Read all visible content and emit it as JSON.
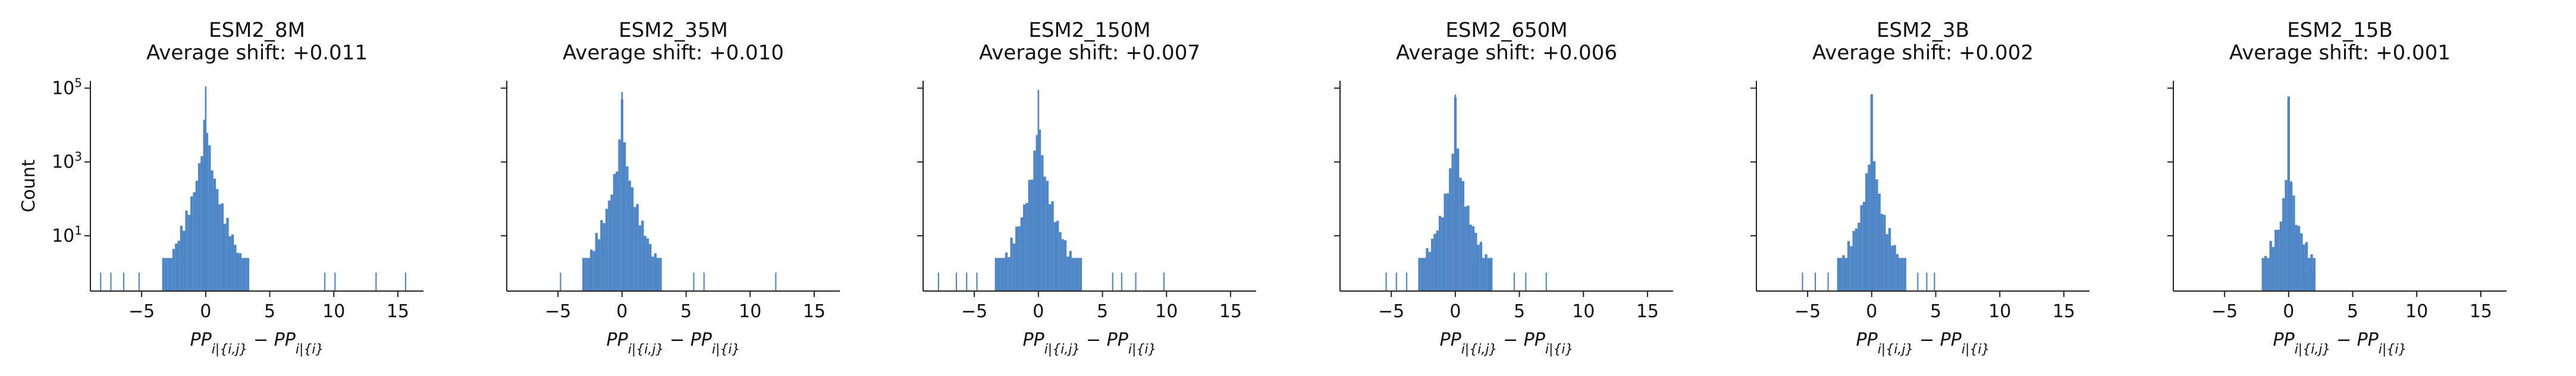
{
  "figure": {
    "ylabel": "Count",
    "xlabel_base": "PP",
    "xlabel_sub1": "i|{i,j}",
    "xlabel_minus": " − ",
    "xlabel_sub2": "i|{i}",
    "bar_color": "#4f86c6"
  },
  "chart_data": [
    {
      "type": "bar",
      "title": "ESM2_8M",
      "subtitle": "Average shift: +0.011",
      "xlim": [
        -9,
        17
      ],
      "ylim_log10": [
        -0.5,
        5.2
      ],
      "yscale": "log",
      "xticks": [
        -5,
        0,
        5,
        10,
        15
      ],
      "xtick_labels": [
        "−5",
        "0",
        "5",
        "10",
        "15"
      ],
      "yticks": [
        1,
        3,
        5
      ],
      "ytick_labels": [
        "10",
        "10",
        "10"
      ],
      "ytick_exponents": [
        "1",
        "3",
        "5"
      ],
      "halfwidth": 3.3,
      "spread": 1.6,
      "peak": 100000,
      "tail_min": 2.5,
      "sparse_ranges": [
        [
          -8.3,
          -4.2
        ],
        [
          6,
          16
        ]
      ],
      "sparse_points": [
        -8.2,
        -7.4,
        -6.4,
        -5.2,
        9.3,
        10.1,
        13.3,
        15.6
      ]
    },
    {
      "type": "bar",
      "title": "ESM2_35M",
      "subtitle": "Average shift: +0.010",
      "xlim": [
        -9,
        17
      ],
      "ylim_log10": [
        -0.5,
        5.2
      ],
      "yscale": "log",
      "xticks": [
        -5,
        0,
        5,
        10,
        15
      ],
      "xtick_labels": [
        "−5",
        "0",
        "5",
        "10",
        "15"
      ],
      "yticks": [
        1,
        3,
        5
      ],
      "halfwidth": 3.0,
      "spread": 1.45,
      "peak": 70000,
      "tail_min": 2.5,
      "sparse_ranges": [
        [
          -5,
          -4
        ],
        [
          5,
          12.2
        ]
      ],
      "sparse_points": [
        -4.8,
        5.6,
        6.4,
        12.0
      ]
    },
    {
      "type": "bar",
      "title": "ESM2_150M",
      "subtitle": "Average shift: +0.007",
      "xlim": [
        -9,
        17
      ],
      "ylim_log10": [
        -0.5,
        5.2
      ],
      "yscale": "log",
      "xticks": [
        -5,
        0,
        5,
        10,
        15
      ],
      "xtick_labels": [
        "−5",
        "0",
        "5",
        "10",
        "15"
      ],
      "yticks": [
        1,
        3,
        5
      ],
      "halfwidth": 3.3,
      "spread": 1.4,
      "peak": 80000,
      "tail_min": 2.5,
      "sparse_ranges": [
        [
          -7.8,
          -4.4
        ],
        [
          5,
          10
        ]
      ],
      "sparse_points": [
        -7.8,
        -6.4,
        -5.6,
        -4.8,
        5.8,
        6.5,
        7.6,
        9.8
      ]
    },
    {
      "type": "bar",
      "title": "ESM2_650M",
      "subtitle": "Average shift: +0.006",
      "xlim": [
        -9,
        17
      ],
      "ylim_log10": [
        -0.5,
        5.2
      ],
      "yscale": "log",
      "xticks": [
        -5,
        0,
        5,
        10,
        15
      ],
      "xtick_labels": [
        "−5",
        "0",
        "5",
        "10",
        "15"
      ],
      "yticks": [
        1,
        3,
        5
      ],
      "halfwidth": 2.8,
      "spread": 1.2,
      "peak": 60000,
      "tail_min": 2.5,
      "sparse_ranges": [
        [
          -6,
          -3.4
        ],
        [
          4,
          7.2
        ]
      ],
      "sparse_points": [
        -5.4,
        -4.6,
        -3.8,
        4.6,
        5.5,
        7.1
      ]
    },
    {
      "type": "bar",
      "title": "ESM2_3B",
      "subtitle": "Average shift: +0.002",
      "xlim": [
        -9,
        17
      ],
      "ylim_log10": [
        -0.5,
        5.2
      ],
      "yscale": "log",
      "xticks": [
        -5,
        0,
        5,
        10,
        15
      ],
      "xtick_labels": [
        "−5",
        "0",
        "5",
        "10",
        "15"
      ],
      "yticks": [
        1,
        3,
        5
      ],
      "halfwidth": 2.6,
      "spread": 1.0,
      "peak": 50000,
      "tail_min": 2.5,
      "sparse_ranges": [
        [
          -5.6,
          -3
        ],
        [
          3.5,
          5
        ]
      ],
      "sparse_points": [
        -5.4,
        -4.4,
        -3.4,
        3.6,
        4.3,
        4.9
      ]
    },
    {
      "type": "bar",
      "title": "ESM2_15B",
      "subtitle": "Average shift: +0.001",
      "xlim": [
        -9,
        17
      ],
      "ylim_log10": [
        -0.5,
        5.2
      ],
      "yscale": "log",
      "xticks": [
        -5,
        0,
        5,
        10,
        15
      ],
      "xtick_labels": [
        "−5",
        "0",
        "5",
        "10",
        "15"
      ],
      "yticks": [
        1,
        3,
        5
      ],
      "halfwidth": 2.0,
      "spread": 0.6,
      "peak": 40000,
      "tail_min": 2.5,
      "sparse_ranges": [
        [
          -1.8,
          -1.2
        ],
        [
          1.2,
          2
        ]
      ],
      "sparse_points": [
        -1.8,
        -1.4,
        1.3,
        1.9
      ]
    }
  ]
}
